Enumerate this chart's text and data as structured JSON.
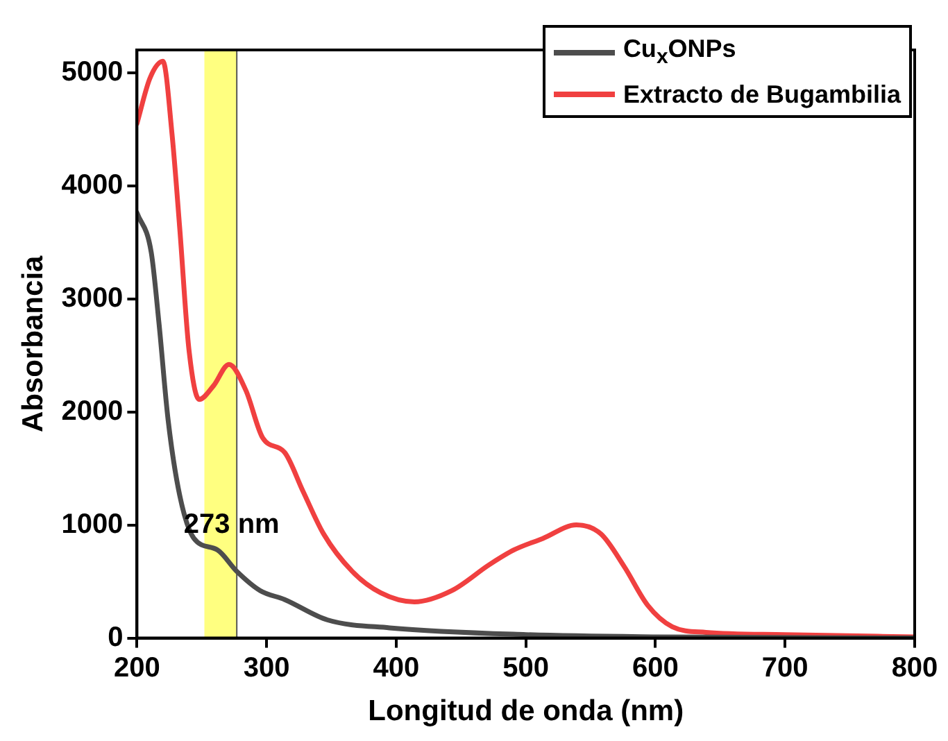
{
  "chart_data": {
    "type": "line",
    "xlabel": "Longitud de onda (nm)",
    "ylabel": "Absorbancia",
    "xlim": [
      200,
      800
    ],
    "ylim": [
      0,
      5200
    ],
    "xticks": [
      200,
      300,
      400,
      500,
      600,
      700,
      800
    ],
    "yticks": [
      0,
      1000,
      2000,
      3000,
      4000,
      5000
    ],
    "grid": false,
    "legend": "top right",
    "marker": "none",
    "line_style": "solid",
    "series": [
      {
        "name": "Cu$_{x}$ONPs",
        "color": "#4d4d4d",
        "x": [
          200,
          211,
          217,
          224,
          233,
          244,
          262,
          277,
          295,
          314,
          347,
          395,
          500,
          600,
          800
        ],
        "values": [
          3760,
          3410,
          2780,
          1930,
          1260,
          880,
          780,
          590,
          420,
          340,
          160,
          90,
          30,
          10,
          0
        ]
      },
      {
        "name": "Extracto de Bugambilia",
        "color": "#f04040",
        "x": [
          200,
          210,
          220,
          227,
          233,
          240,
          248,
          259,
          271,
          284,
          297,
          314,
          328,
          344,
          366,
          388,
          414,
          443,
          472,
          491,
          513,
          539,
          558,
          576,
          594,
          613,
          639,
          700,
          800
        ],
        "values": [
          4550,
          4950,
          5100,
          4460,
          3620,
          2560,
          2110,
          2230,
          2420,
          2190,
          1770,
          1640,
          1300,
          920,
          590,
          400,
          320,
          420,
          650,
          780,
          880,
          1000,
          920,
          630,
          290,
          100,
          50,
          30,
          10
        ]
      }
    ],
    "bands": [
      {
        "axis": "x",
        "from": 252,
        "to": 277,
        "color": "#ffff80"
      }
    ],
    "ref_lines": [
      {
        "axis": "x",
        "value": 277,
        "color": "#555555"
      }
    ],
    "annotations": [
      {
        "text": "273 nm",
        "x": 273,
        "y": 1000
      }
    ]
  }
}
